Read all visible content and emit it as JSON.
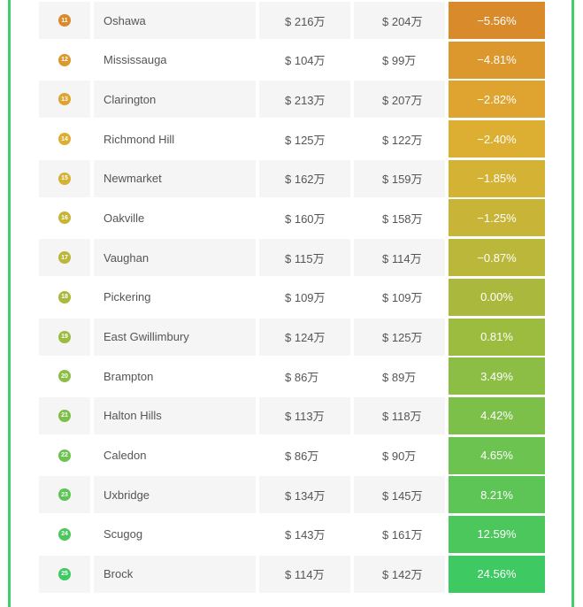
{
  "rows": [
    {
      "rank": "11",
      "name": "Oshawa",
      "price_before": "$ 216万",
      "price_after": "$ 204万",
      "change": "−5.56%",
      "color": "#d98a2a"
    },
    {
      "rank": "12",
      "name": "Mississauga",
      "price_before": "$ 104万",
      "price_after": "$ 99万",
      "change": "−4.81%",
      "color": "#dc982c"
    },
    {
      "rank": "13",
      "name": "Clarington",
      "price_before": "$ 213万",
      "price_after": "$ 207万",
      "change": "−2.82%",
      "color": "#dea42f"
    },
    {
      "rank": "14",
      "name": "Richmond Hill",
      "price_before": "$ 125万",
      "price_after": "$ 122万",
      "change": "−2.40%",
      "color": "#dcae31"
    },
    {
      "rank": "15",
      "name": "Newmarket",
      "price_before": "$ 162万",
      "price_after": "$ 159万",
      "change": "−1.85%",
      "color": "#d4b234"
    },
    {
      "rank": "16",
      "name": "Oakville",
      "price_before": "$ 160万",
      "price_after": "$ 158万",
      "change": "−1.25%",
      "color": "#c8b437"
    },
    {
      "rank": "17",
      "name": "Vaughan",
      "price_before": "$ 115万",
      "price_after": "$ 114万",
      "change": "−0.87%",
      "color": "#bab73a"
    },
    {
      "rank": "18",
      "name": "Pickering",
      "price_before": "$ 109万",
      "price_after": "$ 109万",
      "change": "0.00%",
      "color": "#aab93d"
    },
    {
      "rank": "19",
      "name": "East Gwillimbury",
      "price_before": "$ 124万",
      "price_after": "$ 125万",
      "change": "0.81%",
      "color": "#9cbc40"
    },
    {
      "rank": "20",
      "name": "Brampton",
      "price_before": "$ 86万",
      "price_after": "$ 89万",
      "change": "3.49%",
      "color": "#8cbe45"
    },
    {
      "rank": "21",
      "name": "Halton Hills",
      "price_before": "$ 113万",
      "price_after": "$ 118万",
      "change": "4.42%",
      "color": "#7cc04a"
    },
    {
      "rank": "22",
      "name": "Caledon",
      "price_before": "$ 86万",
      "price_after": "$ 90万",
      "change": "4.65%",
      "color": "#6cc350"
    },
    {
      "rank": "23",
      "name": "Uxbridge",
      "price_before": "$ 134万",
      "price_after": "$ 145万",
      "change": "8.21%",
      "color": "#5cc556"
    },
    {
      "rank": "24",
      "name": "Scugog",
      "price_before": "$ 143万",
      "price_after": "$ 161万",
      "change": "12.59%",
      "color": "#4cc75c"
    },
    {
      "rank": "25",
      "name": "Brock",
      "price_before": "$ 114万",
      "price_after": "$ 142万",
      "change": "24.56%",
      "color": "#3ec963"
    }
  ]
}
